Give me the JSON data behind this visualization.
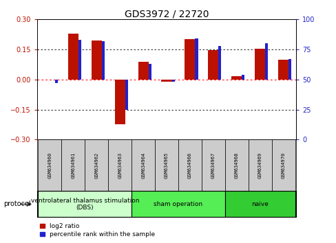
{
  "title": "GDS3972 / 22720",
  "samples": [
    "GSM634960",
    "GSM634961",
    "GSM634962",
    "GSM634963",
    "GSM634964",
    "GSM634965",
    "GSM634966",
    "GSM634967",
    "GSM634968",
    "GSM634969",
    "GSM634970"
  ],
  "log2_ratio": [
    0.001,
    0.23,
    0.195,
    -0.222,
    0.09,
    -0.012,
    0.2,
    0.148,
    0.018,
    0.155,
    0.098
  ],
  "percentile_rank": [
    47,
    83,
    82,
    25,
    63,
    48,
    84,
    78,
    54,
    80,
    67
  ],
  "ylim_left": [
    -0.3,
    0.3
  ],
  "ylim_right": [
    0,
    100
  ],
  "yticks_left": [
    -0.3,
    -0.15,
    0.0,
    0.15,
    0.3
  ],
  "yticks_right": [
    0,
    25,
    50,
    75,
    100
  ],
  "bar_color_red": "#bb1100",
  "bar_color_blue": "#2222cc",
  "protocol_groups": [
    {
      "label": "ventrolateral thalamus stimulation\n(DBS)",
      "indices": [
        0,
        1,
        2,
        3
      ],
      "color": "#ccffcc"
    },
    {
      "label": "sham operation",
      "indices": [
        4,
        5,
        6,
        7
      ],
      "color": "#55ee55"
    },
    {
      "label": "naive",
      "indices": [
        8,
        9,
        10
      ],
      "color": "#33cc33"
    }
  ],
  "legend_red_label": "log2 ratio",
  "legend_blue_label": "percentile rank within the sample",
  "protocol_label": "protocol",
  "title_fontsize": 10,
  "tick_fontsize": 7,
  "sample_fontsize": 5,
  "protocol_fontsize": 6.5,
  "legend_fontsize": 6.5
}
